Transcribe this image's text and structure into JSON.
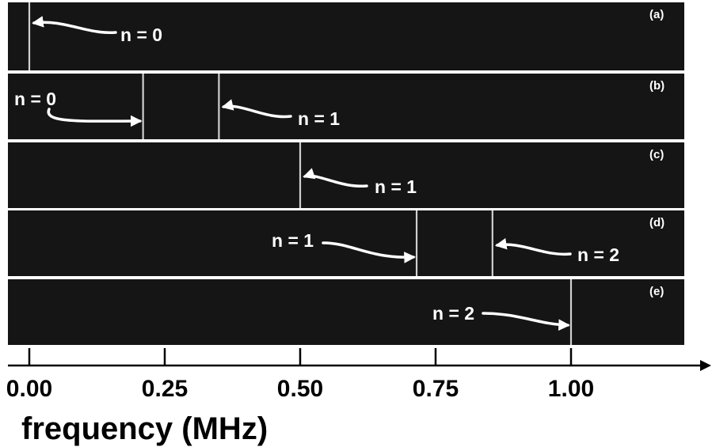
{
  "chart_data": {
    "type": "spectrum-stack",
    "xlabel": "frequency (MHz)",
    "xlim": [
      -0.05,
      1.25
    ],
    "x_ticks": [
      0.0,
      0.25,
      0.5,
      0.75,
      1.0
    ],
    "x_tick_labels": [
      "0.00",
      "0.25",
      "0.50",
      "0.75",
      "1.00"
    ],
    "panels": [
      {
        "tag": "(a)",
        "lines": [
          0.0
        ],
        "labels": [
          {
            "text": "n = 0",
            "target": 0.0
          }
        ]
      },
      {
        "tag": "(b)",
        "lines": [
          0.21,
          0.35
        ],
        "labels": [
          {
            "text": "n = 0",
            "target": 0.21
          },
          {
            "text": "n = 1",
            "target": 0.35
          }
        ]
      },
      {
        "tag": "(c)",
        "lines": [
          0.5
        ],
        "labels": [
          {
            "text": "n = 1",
            "target": 0.5
          }
        ]
      },
      {
        "tag": "(d)",
        "lines": [
          0.715,
          0.855
        ],
        "labels": [
          {
            "text": "n = 1",
            "target": 0.715
          },
          {
            "text": "n = 2",
            "target": 0.855
          }
        ]
      },
      {
        "tag": "(e)",
        "lines": [
          1.0
        ],
        "labels": [
          {
            "text": "n = 2",
            "target": 1.0
          }
        ]
      }
    ],
    "colors": {
      "panel_background": "#151515",
      "line": "#cfcfcf",
      "annotation": "#ffffff",
      "axis": "#000000"
    }
  }
}
